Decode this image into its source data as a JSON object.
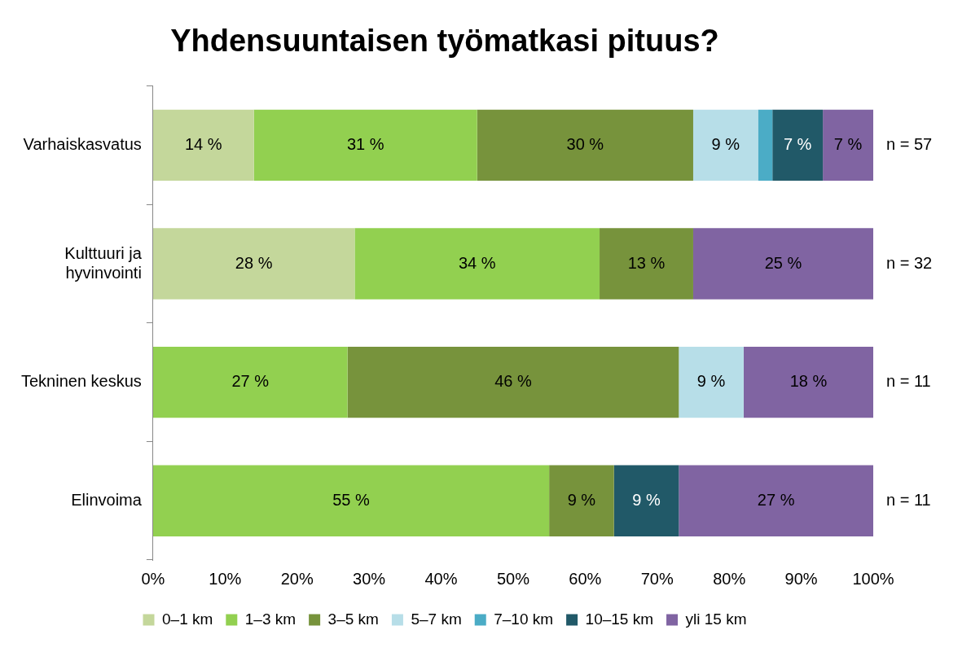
{
  "chart_data": {
    "type": "bar",
    "orientation": "horizontal",
    "stacked": true,
    "title": "Yhdensuuntaisen työmatkasi pituus?",
    "categories": [
      "Varhaiskasvatus",
      "Kulttuuri ja hyvinvointi",
      "Tekninen keskus",
      "Elinvoima"
    ],
    "series": [
      {
        "name": "0–1 km",
        "color": "#c4d79b",
        "values": [
          14,
          28,
          0,
          0
        ],
        "value_labels": [
          "14 %",
          "28 %",
          null,
          null
        ]
      },
      {
        "name": "1–3 km",
        "color": "#92d050",
        "values": [
          31,
          34,
          27,
          55
        ],
        "value_labels": [
          "31 %",
          "34 %",
          "27 %",
          "55 %"
        ]
      },
      {
        "name": "3–5 km",
        "color": "#77933c",
        "values": [
          30,
          13,
          46,
          9
        ],
        "value_labels": [
          "30 %",
          "13 %",
          "46 %",
          "9 %"
        ]
      },
      {
        "name": "5–7 km",
        "color": "#b7dee8",
        "values": [
          9,
          0,
          9,
          0
        ],
        "value_labels": [
          "9 %",
          null,
          "9 %",
          null
        ]
      },
      {
        "name": "7–10 km",
        "color": "#4bacc6",
        "values": [
          2,
          0,
          0,
          0
        ],
        "value_labels": [
          null,
          null,
          null,
          null
        ]
      },
      {
        "name": "10–15 km",
        "color": "#215968",
        "values": [
          7,
          0,
          0,
          9
        ],
        "value_labels": [
          "7 %",
          null,
          null,
          "9 %"
        ]
      },
      {
        "name": "yli 15 km",
        "color": "#8064a2",
        "values": [
          7,
          25,
          18,
          27
        ],
        "value_labels": [
          "7 %",
          "25 %",
          "18 %",
          "27 %"
        ]
      }
    ],
    "xlim": [
      0,
      100
    ],
    "xticks": [
      {
        "value": 0,
        "label": "0%"
      },
      {
        "value": 10,
        "label": "10%"
      },
      {
        "value": 20,
        "label": "20%"
      },
      {
        "value": 30,
        "label": "30%"
      },
      {
        "value": 40,
        "label": "40%"
      },
      {
        "value": 50,
        "label": "50%"
      },
      {
        "value": 60,
        "label": "60%"
      },
      {
        "value": 70,
        "label": "70%"
      },
      {
        "value": 80,
        "label": "80%"
      },
      {
        "value": 90,
        "label": "90%"
      },
      {
        "value": 100,
        "label": "100%"
      }
    ],
    "grid": false,
    "legend": "bottom",
    "annotations": [
      "n = 57",
      "n = 32",
      "n = 11",
      "n = 11"
    ]
  }
}
